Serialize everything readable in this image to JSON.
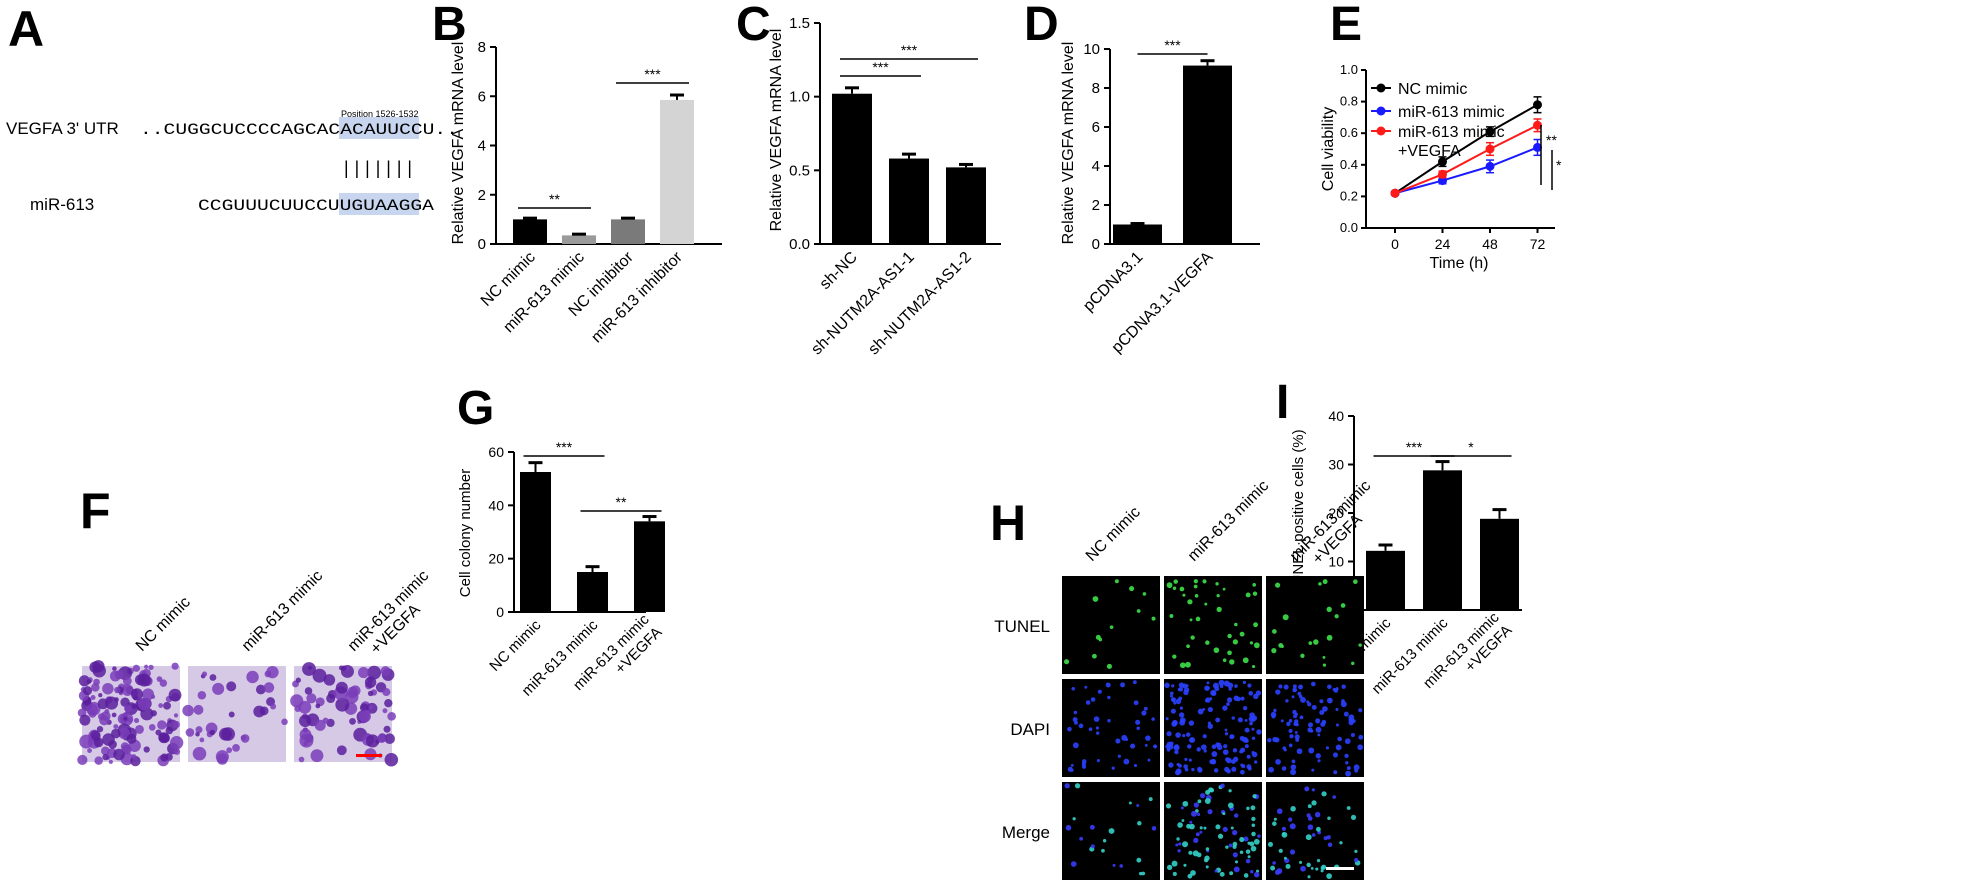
{
  "panels": {
    "A": {
      "letter": "A",
      "utr_label": "VEGFA 3' UTR",
      "utr_dots_left": "..",
      "utr_seq_plain": "CUGGCUCCCCAGCAC",
      "utr_seq_highlight": "ACAUUCC",
      "utr_seq_tail": "U",
      "utr_dots_right": "..",
      "position_label": "Position 1526-1532",
      "pairing": "|||||||",
      "mir_label": "miR-613",
      "mir_seq_plain": "CCGUUUCUUCCU",
      "mir_seq_highlight": "UGUAAGG",
      "mir_seq_tail": "A",
      "highlight_color": "#c7d6ee"
    },
    "F": {
      "letter": "F",
      "image_labels": [
        "NC mimic",
        "miR-613 mimic",
        "miR-613 mimic\n+VEGFA"
      ]
    },
    "H": {
      "letter": "H",
      "col_labels": [
        "NC mimic",
        "miR-613 mimic",
        "miR-613 mimic\n+VEGFA"
      ],
      "row_labels": [
        "TUNEL",
        "DAPI",
        "Merge"
      ]
    }
  },
  "chart_data": [
    {
      "panel": "B",
      "type": "bar",
      "categories": [
        "NC mimic",
        "miR-613 mimic",
        "NC inhibitor",
        "miR-613 inhibitor"
      ],
      "values": [
        1.0,
        0.35,
        1.0,
        5.85
      ],
      "errors": [
        0.05,
        0.05,
        0.05,
        0.2
      ],
      "colors": [
        "#000000",
        "#9a9a9a",
        "#7a7a7a",
        "#d4d4d4"
      ],
      "ylabel": "Relative VEGFA mRNA level",
      "ylim": [
        0,
        8
      ],
      "yticks": [
        "0",
        "2",
        "4",
        "6",
        "8"
      ],
      "significance": [
        {
          "from": 0,
          "to": 1,
          "label": "**"
        },
        {
          "from": 2,
          "to": 3,
          "label": "***"
        }
      ]
    },
    {
      "panel": "C",
      "type": "bar",
      "categories": [
        "sh-NC",
        "sh-NUTM2A-AS1-1",
        "sh-NUTM2A-AS1-2"
      ],
      "values": [
        1.02,
        0.58,
        0.52
      ],
      "errors": [
        0.04,
        0.03,
        0.02
      ],
      "colors": [
        "#000000",
        "#000000",
        "#000000"
      ],
      "ylabel": "Relative VEGFA mRNA level",
      "ylim": [
        0,
        1.5
      ],
      "yticks": [
        "0.0",
        "0.5",
        "1.0",
        "1.5"
      ],
      "significance": [
        {
          "from": 0,
          "to": 1,
          "label": "***"
        },
        {
          "from": 0,
          "to": 2,
          "label": "***"
        }
      ]
    },
    {
      "panel": "D",
      "type": "bar",
      "categories": [
        "pCDNA3.1",
        "pCDNA3.1-VEGFA"
      ],
      "values": [
        1.0,
        9.15
      ],
      "errors": [
        0.05,
        0.25
      ],
      "colors": [
        "#000000",
        "#000000"
      ],
      "ylabel": "Relative VEGFA mRNA level",
      "ylim": [
        0,
        10
      ],
      "yticks": [
        "0",
        "2",
        "4",
        "6",
        "8",
        "10"
      ],
      "significance": [
        {
          "from": 0,
          "to": 1,
          "label": "***"
        }
      ]
    },
    {
      "panel": "E",
      "type": "line",
      "x": [
        0,
        24,
        48,
        72
      ],
      "xticks": [
        "0",
        "24",
        "48",
        "72"
      ],
      "xlabel": "Time (h)",
      "ylabel": "Cell viability",
      "ylim": [
        0,
        1.0
      ],
      "yticks": [
        "0.0",
        "0.2",
        "0.4",
        "0.6",
        "0.8",
        "1.0"
      ],
      "series": [
        {
          "name": "NC mimic",
          "values": [
            0.22,
            0.42,
            0.61,
            0.78
          ],
          "errors": [
            0.01,
            0.03,
            0.03,
            0.05
          ],
          "color": "#000000"
        },
        {
          "name": "miR-613 mimic",
          "values": [
            0.22,
            0.3,
            0.39,
            0.51
          ],
          "errors": [
            0.01,
            0.02,
            0.04,
            0.05
          ],
          "color": "#1a1aff"
        },
        {
          "name": "miR-613 mimic\n+VEGFA",
          "values": [
            0.22,
            0.34,
            0.5,
            0.65
          ],
          "errors": [
            0.01,
            0.02,
            0.04,
            0.04
          ],
          "color": "#ff1a1a"
        }
      ],
      "significance": [
        {
          "label": "**"
        },
        {
          "label": "*"
        }
      ]
    },
    {
      "panel": "G",
      "type": "bar",
      "categories": [
        "NC mimic",
        "miR-613 mimic",
        "miR-613 mimic\n+VEGFA"
      ],
      "values": [
        52.5,
        15.0,
        34.0
      ],
      "errors": [
        3.5,
        2.0,
        1.8
      ],
      "colors": [
        "#000000",
        "#000000",
        "#000000"
      ],
      "ylabel": "Cell colony number",
      "ylim": [
        0,
        60
      ],
      "yticks": [
        "0",
        "20",
        "40",
        "60"
      ],
      "significance": [
        {
          "from": 0,
          "to": 1,
          "label": "***"
        },
        {
          "from": 1,
          "to": 2,
          "label": "**"
        }
      ]
    },
    {
      "panel": "I",
      "type": "bar",
      "categories": [
        "NC mimic",
        "miR-613 mimic",
        "miR-613 mimic\n+VEGFA"
      ],
      "values": [
        12.2,
        28.8,
        18.8
      ],
      "errors": [
        1.2,
        1.8,
        1.9
      ],
      "colors": [
        "#000000",
        "#000000",
        "#000000"
      ],
      "ylabel": "TUNEL positive cells (%)",
      "ylim": [
        0,
        40
      ],
      "yticks": [
        "0",
        "10",
        "20",
        "30",
        "40"
      ],
      "significance": [
        {
          "from": 0,
          "to": 1,
          "label": "***"
        },
        {
          "from": 1,
          "to": 2,
          "label": "*"
        }
      ]
    }
  ]
}
